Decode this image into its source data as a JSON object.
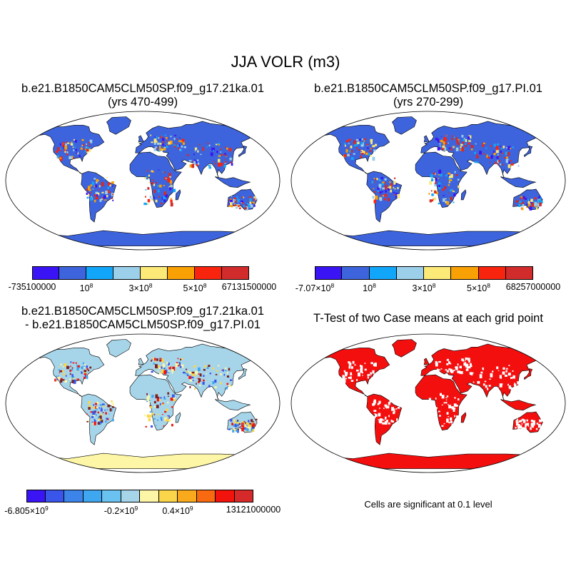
{
  "figure": {
    "title": "JJA VOLR (m3)"
  },
  "panels": [
    {
      "id": "case1",
      "title_line1": "b.e21.B1850CAM5CLM50SP.f09_g17.21ka.01",
      "title_line2": "(yrs 470-499)",
      "field": "case",
      "colorbar": {
        "colors": [
          "#3a14f5",
          "#3d64dc",
          "#12a6fa",
          "#9ccfea",
          "#fbe978",
          "#f9a005",
          "#f8240e",
          "#d22b2b"
        ],
        "labels": [
          {
            "text": "-735100000",
            "at": 0.0,
            "sup": ""
          },
          {
            "text": "10",
            "at": 0.25,
            "sup": "8"
          },
          {
            "text": "3×10",
            "at": 0.5,
            "sup": "8"
          },
          {
            "text": "5×10",
            "at": 0.75,
            "sup": "8"
          },
          {
            "text": "67131500000",
            "at": 1.0,
            "sup": ""
          }
        ]
      }
    },
    {
      "id": "case2",
      "title_line1": "b.e21.B1850CAM5CLM50SP.f09_g17.PI.01",
      "title_line2": "(yrs 270-299)",
      "field": "case",
      "colorbar": {
        "colors": [
          "#3a14f5",
          "#3d64dc",
          "#12a6fa",
          "#9ccfea",
          "#fbe978",
          "#f9a005",
          "#f8240e",
          "#d22b2b"
        ],
        "labels": [
          {
            "text": "-7.07×10",
            "at": 0.0,
            "sup": "8"
          },
          {
            "text": "10",
            "at": 0.25,
            "sup": "8"
          },
          {
            "text": "3×10",
            "at": 0.5,
            "sup": "8"
          },
          {
            "text": "5×10",
            "at": 0.75,
            "sup": "8"
          },
          {
            "text": "68257000000",
            "at": 1.0,
            "sup": ""
          }
        ]
      }
    },
    {
      "id": "diff",
      "title_line1": "b.e21.B1850CAM5CLM50SP.f09_g17.21ka.01",
      "title_line2": "- b.e21.B1850CAM5CLM50SP.f09_g17.PI.01",
      "field": "diff",
      "colorbar": {
        "colors": [
          "#3a14f5",
          "#3a55ea",
          "#3d84ea",
          "#3fa6f0",
          "#69c2f0",
          "#a6d5ea",
          "#fdf6a7",
          "#fbd54a",
          "#f9aa1c",
          "#f96a10",
          "#f2140c",
          "#d62a2a"
        ],
        "labels": [
          {
            "text": "-6.805×10",
            "at": 0.0,
            "sup": "9"
          },
          {
            "text": "-0.2×10",
            "at": 0.4167,
            "sup": "9"
          },
          {
            "text": "0.4×10",
            "at": 0.6667,
            "sup": "9"
          },
          {
            "text": "13121000000",
            "at": 1.0,
            "sup": ""
          }
        ]
      }
    },
    {
      "id": "ttest",
      "title_line1": "T-Test of two Case means at each grid point",
      "title_line2": "",
      "field": "ttest",
      "note": "Cells are significant at 0.1 level"
    }
  ],
  "colors": {
    "land_case": "#3d64dc",
    "land_diff": "#a6d5ea",
    "land_significant": "#f40f0f",
    "antarctica_diff": "#fdf6a7",
    "coastline": "#000000"
  }
}
